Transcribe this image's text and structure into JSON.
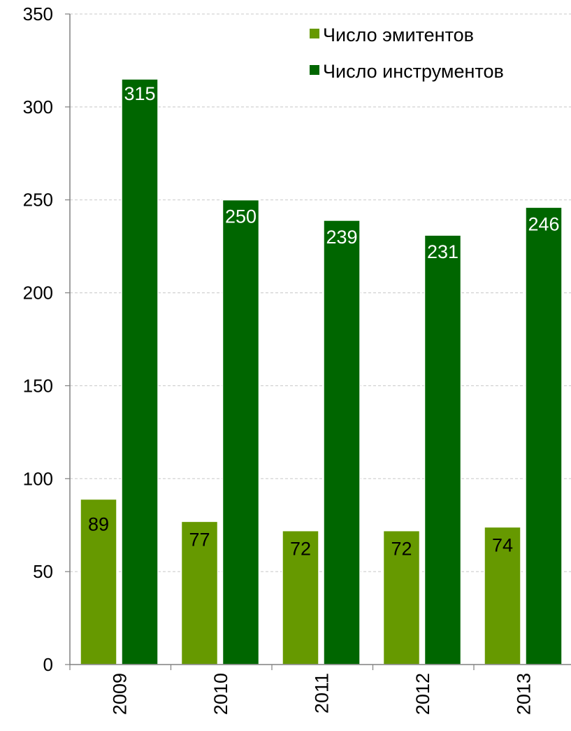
{
  "chart_data": {
    "type": "bar",
    "categories": [
      "2009",
      "2010",
      "2011",
      "2012",
      "2013"
    ],
    "series": [
      {
        "name": "Число эмитентов",
        "values": [
          89,
          77,
          72,
          72,
          74
        ],
        "color": "#669900",
        "label_color": "#000000"
      },
      {
        "name": "Число инструментов",
        "values": [
          315,
          250,
          239,
          231,
          246
        ],
        "color": "#006600",
        "label_color": "#ffffff"
      }
    ],
    "title": "",
    "xlabel": "",
    "ylabel": "",
    "ylim": [
      0,
      350
    ],
    "yticks": [
      0,
      50,
      100,
      150,
      200,
      250,
      300,
      350
    ],
    "grid": true,
    "legend_position": "top-right",
    "x_tick_rotation": "vertical"
  }
}
